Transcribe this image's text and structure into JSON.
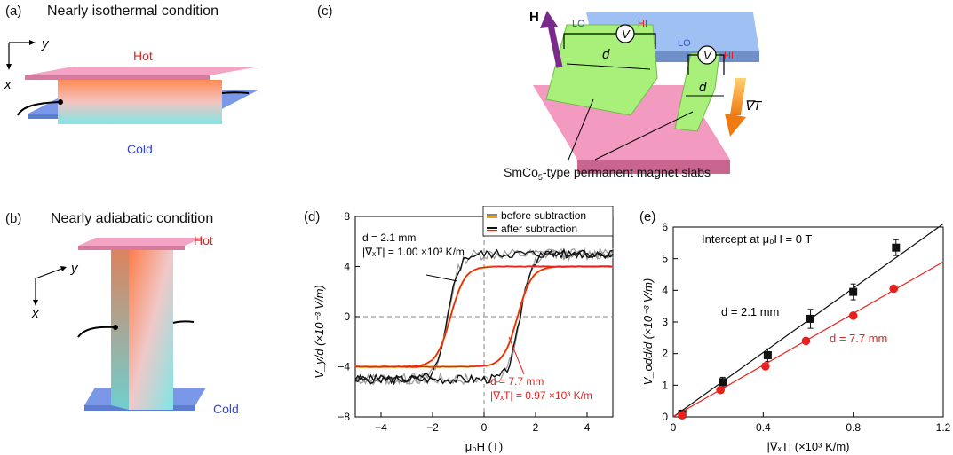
{
  "panel_a": {
    "label": "(a)",
    "title": "Nearly isothermal condition",
    "hot": "Hot",
    "cold": "Cold",
    "axis_y": "y",
    "axis_x": "x"
  },
  "panel_b": {
    "label": "(b)",
    "title": "Nearly adiabatic condition",
    "hot": "Hot",
    "cold": "Cold",
    "axis_y": "y",
    "axis_x": "x"
  },
  "panel_c": {
    "label": "(c)",
    "field_label": "H",
    "lo_left": "LO",
    "hi_left": "HI",
    "lo_right": "LO",
    "hi_right": "HI",
    "volt_symbol": "V",
    "d_left": "d",
    "d_right": "d",
    "grad_label": "∇T",
    "caption_pre": "SmCo",
    "caption_sub": "5",
    "caption_post": "-type permanent magnet slabs"
  },
  "panel_d": {
    "label": "(d)",
    "ylabel": "V_y/d (×10⁻³ V/m)",
    "xlabel": "μ₀H (T)",
    "legend": [
      "before subtraction",
      "after subtraction"
    ],
    "ann_black_d": "d = 2.1 mm",
    "ann_black_grad": "|∇ₓT| = 1.00 ×10³ K/m",
    "ann_red_d": "d = 7.7 mm",
    "ann_red_grad": "|∇ₓT| = 0.97 ×10³ K/m",
    "colors": {
      "before_dark": "#111111",
      "before_gray": "#9a9a9a",
      "after": "#e8211c",
      "after_orange": "#f0a020"
    }
  },
  "panel_e": {
    "label": "(e)",
    "ylabel": "V_odd/d (×10⁻³ V/m)",
    "xlabel": "|∇ₓT| (×10³ K/m)",
    "intercept_note": "Intercept at μ₀H = 0 T",
    "label_black": "d = 2.1 mm",
    "label_red": "d = 7.7 mm"
  },
  "chart_data": [
    {
      "type": "line",
      "title": "(d)",
      "xlabel": "μ0H (T)",
      "ylabel": "V_y/d (×10^-3 V/m)",
      "xlim": [
        -5,
        5
      ],
      "ylim": [
        -8,
        8
      ],
      "xticks": [
        -4,
        -2,
        0,
        2,
        4
      ],
      "yticks": [
        -8,
        -4,
        0,
        4,
        8
      ],
      "series": [
        {
          "name": "d = 2.1 mm (before subtraction)",
          "loop": {
            "saturation": 5.0,
            "coercive_field": 1.4,
            "width": 0.42
          }
        },
        {
          "name": "d = 7.7 mm (after subtraction)",
          "loop": {
            "saturation": 4.0,
            "coercive_field": 1.3,
            "width": 0.55
          }
        }
      ]
    },
    {
      "type": "scatter",
      "title": "(e) Intercept at μ0H = 0 T",
      "xlabel": "|∇xT| (×10^3 K/m)",
      "ylabel": "V_odd/d (×10^-3 V/m)",
      "xlim": [
        0,
        1.2
      ],
      "ylim": [
        0,
        6
      ],
      "xticks": [
        0,
        0.4,
        0.8,
        1.2
      ],
      "yticks": [
        0,
        1,
        2,
        3,
        4,
        5,
        6
      ],
      "series": [
        {
          "name": "d = 2.1 mm",
          "x": [
            0.04,
            0.22,
            0.42,
            0.61,
            0.8,
            0.99
          ],
          "y": [
            0.1,
            1.1,
            1.95,
            3.1,
            3.95,
            5.35
          ],
          "err": [
            0.1,
            0.15,
            0.2,
            0.3,
            0.25,
            0.25
          ],
          "fit_end": [
            1.2,
            6.1
          ]
        },
        {
          "name": "d = 7.7 mm",
          "x": [
            0.04,
            0.21,
            0.41,
            0.59,
            0.8,
            0.98
          ],
          "y": [
            0.05,
            0.85,
            1.6,
            2.4,
            3.2,
            4.05
          ],
          "err": [
            0.08,
            0.08,
            0.08,
            0.08,
            0.08,
            0.08
          ],
          "fit_end": [
            1.2,
            4.9
          ]
        }
      ]
    }
  ]
}
